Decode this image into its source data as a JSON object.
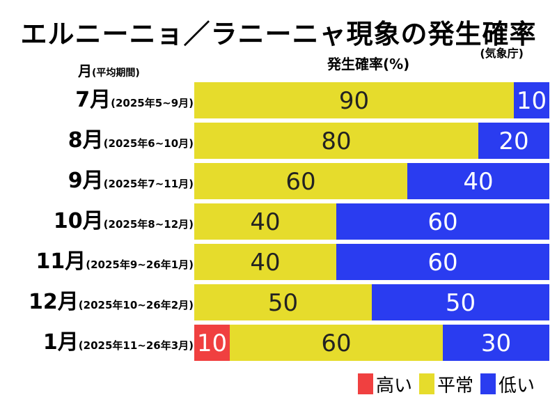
{
  "title": "エルニーニョ／ラニーニャ現象の発生確率",
  "source": "(気象庁)",
  "column_header": {
    "month": "月",
    "month_note": "(平均期間)"
  },
  "percent_header": "発生確率(%)",
  "colors": {
    "high": "#f04040",
    "normal": "#e6dc2c",
    "low": "#2a3cf0"
  },
  "chart_data": {
    "type": "bar",
    "orientation": "horizontal",
    "stacked": true,
    "title": "エルニーニョ／ラニーニャ現象の発生確率",
    "xlabel": "発生確率(%)",
    "ylabel": "月(平均期間)",
    "xlim": [
      0,
      100
    ],
    "categories": [
      {
        "month": "7月",
        "period": "(2025年5~9月)"
      },
      {
        "month": "8月",
        "period": "(2025年6~10月)"
      },
      {
        "month": "9月",
        "period": "(2025年7~11月)"
      },
      {
        "month": "10月",
        "period": "(2025年8~12月)"
      },
      {
        "month": "11月",
        "period": "(2025年9~26年1月)"
      },
      {
        "month": "12月",
        "period": "(2025年10~26年2月)"
      },
      {
        "month": "1月",
        "period": "(2025年11~26年3月)"
      }
    ],
    "series": [
      {
        "name": "高い",
        "key": "high",
        "values": [
          0,
          0,
          0,
          0,
          0,
          0,
          10
        ]
      },
      {
        "name": "平常",
        "key": "normal",
        "values": [
          90,
          80,
          60,
          40,
          40,
          50,
          60
        ]
      },
      {
        "name": "低い",
        "key": "low",
        "values": [
          10,
          20,
          40,
          60,
          60,
          50,
          30
        ]
      }
    ],
    "legend": [
      {
        "label": "高い",
        "key": "high"
      },
      {
        "label": "平常",
        "key": "normal"
      },
      {
        "label": "低い",
        "key": "low"
      }
    ]
  }
}
